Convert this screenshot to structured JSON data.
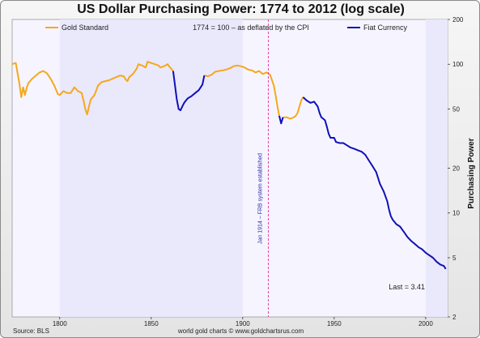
{
  "chart_data": {
    "type": "line",
    "title": "US Dollar Purchasing Power: 1774 to 2012 (log scale)",
    "subtitle": "1774 = 100 – as deflated by the CPI",
    "ylabel": "Purchasing Power",
    "y_scale": "log",
    "xlim": [
      1774,
      2012
    ],
    "ylim": [
      2,
      200
    ],
    "x_ticks": [
      1800,
      1850,
      1900,
      1950,
      2000
    ],
    "y_ticks": [
      2,
      5,
      10,
      20,
      50,
      100,
      200
    ],
    "legend_position": "top",
    "annotation": {
      "x": 1914,
      "text": "Jan 1914 – FRB system established"
    },
    "last_label": "Last = 3.41",
    "series": [
      {
        "name": "Gold Standard",
        "color": "#f5a81c",
        "segments": [
          [
            [
              1774,
              100
            ],
            [
              1776,
              102
            ],
            [
              1778,
              74
            ],
            [
              1779,
              60
            ],
            [
              1780,
              70
            ],
            [
              1781,
              62
            ],
            [
              1782,
              70
            ],
            [
              1783,
              75
            ],
            [
              1785,
              80
            ],
            [
              1787,
              84
            ],
            [
              1789,
              88
            ],
            [
              1791,
              90
            ],
            [
              1793,
              87
            ],
            [
              1795,
              80
            ],
            [
              1797,
              72
            ],
            [
              1799,
              63
            ],
            [
              1800,
              62
            ],
            [
              1802,
              66
            ],
            [
              1804,
              64
            ],
            [
              1806,
              64
            ],
            [
              1808,
              70
            ],
            [
              1810,
              66
            ],
            [
              1812,
              64
            ],
            [
              1813,
              57
            ],
            [
              1814,
              50
            ],
            [
              1815,
              46
            ],
            [
              1816,
              52
            ],
            [
              1817,
              58
            ],
            [
              1819,
              62
            ],
            [
              1821,
              72
            ],
            [
              1823,
              76
            ],
            [
              1825,
              77
            ],
            [
              1827,
              78
            ],
            [
              1829,
              80
            ],
            [
              1831,
              82
            ],
            [
              1833,
              84
            ],
            [
              1835,
              83
            ],
            [
              1836,
              79
            ],
            [
              1837,
              77
            ],
            [
              1838,
              82
            ],
            [
              1840,
              86
            ],
            [
              1842,
              93
            ],
            [
              1843,
              100
            ],
            [
              1845,
              98
            ],
            [
              1847,
              95
            ],
            [
              1848,
              104
            ],
            [
              1850,
              102
            ],
            [
              1852,
              100
            ],
            [
              1854,
              98
            ],
            [
              1855,
              95
            ],
            [
              1857,
              97
            ],
            [
              1859,
              100
            ],
            [
              1860,
              96
            ],
            [
              1861,
              93
            ],
            [
              1862,
              90
            ]
          ],
          [
            [
              1879,
              84
            ],
            [
              1881,
              83
            ],
            [
              1883,
              85
            ],
            [
              1885,
              89
            ],
            [
              1887,
              90
            ],
            [
              1889,
              91
            ],
            [
              1891,
              92
            ],
            [
              1893,
              94
            ],
            [
              1895,
              97
            ],
            [
              1897,
              98
            ],
            [
              1899,
              97
            ],
            [
              1901,
              95
            ],
            [
              1903,
              92
            ],
            [
              1905,
              91
            ],
            [
              1907,
              88
            ],
            [
              1909,
              90
            ],
            [
              1911,
              86
            ],
            [
              1913,
              88
            ],
            [
              1915,
              85
            ],
            [
              1917,
              72
            ],
            [
              1918,
              62
            ],
            [
              1919,
              52
            ],
            [
              1920,
              45
            ]
          ],
          [
            [
              1922,
              44
            ],
            [
              1924,
              44
            ],
            [
              1926,
              43
            ],
            [
              1928,
              44
            ],
            [
              1929,
              45
            ],
            [
              1930,
              47
            ],
            [
              1931,
              52
            ],
            [
              1932,
              57
            ],
            [
              1933,
              60
            ]
          ]
        ]
      },
      {
        "name": "Fiat Currency",
        "color": "#1010b8",
        "segments": [
          [
            [
              1862,
              90
            ],
            [
              1863,
              72
            ],
            [
              1864,
              58
            ],
            [
              1865,
              50
            ],
            [
              1866,
              49
            ],
            [
              1867,
              52
            ],
            [
              1868,
              55
            ],
            [
              1869,
              57
            ],
            [
              1870,
              59
            ],
            [
              1872,
              61
            ],
            [
              1874,
              64
            ],
            [
              1876,
              67
            ],
            [
              1878,
              73
            ],
            [
              1879,
              84
            ]
          ],
          [
            [
              1920,
              45
            ],
            [
              1921,
              40
            ],
            [
              1922,
              44
            ]
          ],
          [
            [
              1933,
              60
            ],
            [
              1935,
              57
            ],
            [
              1937,
              55
            ],
            [
              1939,
              56
            ],
            [
              1941,
              52
            ],
            [
              1942,
              47
            ],
            [
              1943,
              44
            ],
            [
              1944,
              43
            ],
            [
              1945,
              42
            ],
            [
              1946,
              38
            ],
            [
              1947,
              34
            ],
            [
              1948,
              32
            ],
            [
              1950,
              32
            ],
            [
              1951,
              30
            ],
            [
              1953,
              29.5
            ],
            [
              1955,
              29.5
            ],
            [
              1957,
              28.5
            ],
            [
              1959,
              27.5
            ],
            [
              1961,
              27
            ],
            [
              1963,
              26.4
            ],
            [
              1965,
              25.8
            ],
            [
              1967,
              24.6
            ],
            [
              1969,
              22.5
            ],
            [
              1971,
              20.6
            ],
            [
              1973,
              18.8
            ],
            [
              1975,
              15.7
            ],
            [
              1977,
              14
            ],
            [
              1979,
              12
            ],
            [
              1980,
              10.5
            ],
            [
              1981,
              9.5
            ],
            [
              1982,
              9
            ],
            [
              1984,
              8.4
            ],
            [
              1986,
              8.1
            ],
            [
              1988,
              7.5
            ],
            [
              1990,
              6.9
            ],
            [
              1992,
              6.5
            ],
            [
              1994,
              6.2
            ],
            [
              1996,
              5.9
            ],
            [
              1998,
              5.7
            ],
            [
              2000,
              5.4
            ],
            [
              2002,
              5.2
            ],
            [
              2004,
              5
            ],
            [
              2006,
              4.7
            ],
            [
              2008,
              4.5
            ],
            [
              2010,
              4.4
            ],
            [
              2011,
              4.2
            ]
          ]
        ]
      }
    ]
  },
  "footer": {
    "source": "Source: BLS",
    "credit": "world gold charts © www.goldchartsrus.com"
  }
}
